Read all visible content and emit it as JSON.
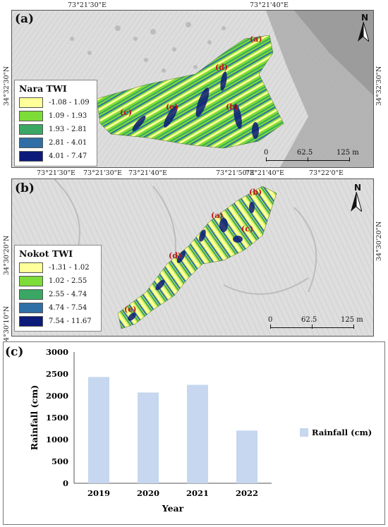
{
  "panel_a": {
    "label": "(a)",
    "top_coords": [
      "73°21'30\"E",
      "73°21'40\"E"
    ],
    "bottom_coords": [
      "73°21'30\"E",
      "73°21'40\"E",
      "73°21'50\"E"
    ],
    "left_coords": [
      "34°32'30\"N"
    ],
    "right_coords": [
      "34°32'30\"N"
    ],
    "site_labels": [
      "(a)",
      "(b)",
      "(c)",
      "(d)",
      "(e)"
    ],
    "legend": {
      "title": "Nara TWI",
      "items": [
        {
          "range": "-1.08 - 1.09",
          "color": "#ffff99"
        },
        {
          "range": "1.09 - 1.93",
          "color": "#7ddc37"
        },
        {
          "range": "1.93 - 2.81",
          "color": "#3aa864"
        },
        {
          "range": "2.81 - 4.01",
          "color": "#2f6fa6"
        },
        {
          "range": "4.01 - 7.47",
          "color": "#0c1a7a"
        }
      ]
    },
    "scale": {
      "labels": [
        "0",
        "62.5",
        "125 m"
      ]
    },
    "north_letter": "N"
  },
  "panel_b": {
    "label": "(b)",
    "top_coords": [
      "73°21'30\"E",
      "73°21'40\"E",
      "73°21'50\"E",
      "73°22'0\"E"
    ],
    "left_coords": [
      "34°30'10\"N"
    ],
    "right_coords": [
      "34°30'20\"N"
    ],
    "site_labels": [
      "(a)",
      "(b)",
      "(c)",
      "(d)",
      "(e)"
    ],
    "legend": {
      "title": "Nokot TWI",
      "items": [
        {
          "range": "-1.31 - 1.02",
          "color": "#ffff99"
        },
        {
          "range": "1.02 - 2.55",
          "color": "#7ddc37"
        },
        {
          "range": "2.55 - 4.74",
          "color": "#3aa864"
        },
        {
          "range": "4.74 - 7.54",
          "color": "#2f6fa6"
        },
        {
          "range": "7.54 - 11.67",
          "color": "#0c1a7a"
        }
      ]
    },
    "scale": {
      "labels": [
        "0",
        "62.5",
        "125 m"
      ]
    },
    "north_letter": "N",
    "top_left_coord_extra": "34°30'20\"N"
  },
  "panel_c": {
    "label": "(c)"
  },
  "chart_data": {
    "type": "bar",
    "categories": [
      "2019",
      "2020",
      "2021",
      "2022"
    ],
    "series": [
      {
        "name": "Rainfall (cm)",
        "values": [
          2430,
          2075,
          2250,
          1205
        ],
        "color": "#c6d7ef"
      }
    ],
    "xlabel": "Year",
    "ylabel": "Rainfall (cm)",
    "ylim": [
      0,
      3000
    ],
    "yticks": [
      "0",
      "500",
      "1000",
      "1500",
      "2000",
      "2500",
      "3000"
    ],
    "legend_placement": "right",
    "grid": false
  }
}
